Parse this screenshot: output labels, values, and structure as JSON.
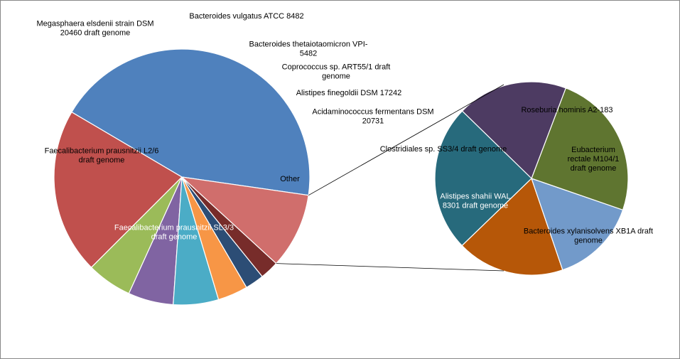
{
  "chart_data": {
    "type": "pie",
    "subtype": "pie-of-pie",
    "main_pie": {
      "slices": [
        {
          "label_lines": [
            "Faecalibacterium prausnitzii SL3/3",
            "draft genome"
          ],
          "value": 46,
          "color": "#4F81BD",
          "label_color": "#ffffff"
        },
        {
          "label_lines": [
            "Faecalibacterium prausnitzii L2/6",
            "draft genome"
          ],
          "value": 22,
          "color": "#C0504D",
          "label_color": "#000000"
        },
        {
          "label_lines": [
            "Megasphaera elsdenii strain DSM",
            "20460 draft genome"
          ],
          "value": 6,
          "color": "#9BBB59",
          "label_color": "#000000"
        },
        {
          "label_lines": [
            "Bacteroides vulgatus ATCC 8482"
          ],
          "value": 6,
          "color": "#8064A2",
          "label_color": "#000000"
        },
        {
          "label_lines": [
            "Bacteroides thetaiotaomicron VPI-",
            "5482"
          ],
          "value": 6,
          "color": "#4BACC6",
          "label_color": "#000000"
        },
        {
          "label_lines": [
            "Coprococcus sp. ART55/1 draft",
            "genome"
          ],
          "value": 4,
          "color": "#F79646",
          "label_color": "#000000"
        },
        {
          "label_lines": [
            "Alistipes finegoldii DSM 17242"
          ],
          "value": 2.5,
          "color": "#2C4D75",
          "label_color": "#000000"
        },
        {
          "label_lines": [
            "Acidaminococcus fermentans DSM",
            "20731"
          ],
          "value": 2.5,
          "color": "#772C2A",
          "label_color": "#000000"
        },
        {
          "label_lines": [
            "Other"
          ],
          "value": 10,
          "color": "#D06E6C",
          "label_color": "#000000"
        }
      ]
    },
    "secondary_pie": {
      "slices": [
        {
          "label_lines": [
            "Roseburia hominis A2-183"
          ],
          "value": 18,
          "color": "#B65708",
          "label_color": "#000000"
        },
        {
          "label_lines": [
            "Eubacterium",
            "rectale M104/1",
            "draft genome"
          ],
          "value": 14.5,
          "color": "#729ACA",
          "label_color": "#000000"
        },
        {
          "label_lines": [
            "Bacteroides xylanisolvens XB1A draft",
            "genome"
          ],
          "value": 24.5,
          "color": "#5F7530",
          "label_color": "#000000"
        },
        {
          "label_lines": [
            "Alistipes shahii WAL",
            "8301 draft genome"
          ],
          "value": 18.5,
          "color": "#4D3B62",
          "label_color": "#ffffff"
        },
        {
          "label_lines": [
            "Clostridiales sp. SS3/4 draft genome"
          ],
          "value": 24.5,
          "color": "#276A7C",
          "label_color": "#000000"
        }
      ]
    },
    "legend": "none"
  }
}
